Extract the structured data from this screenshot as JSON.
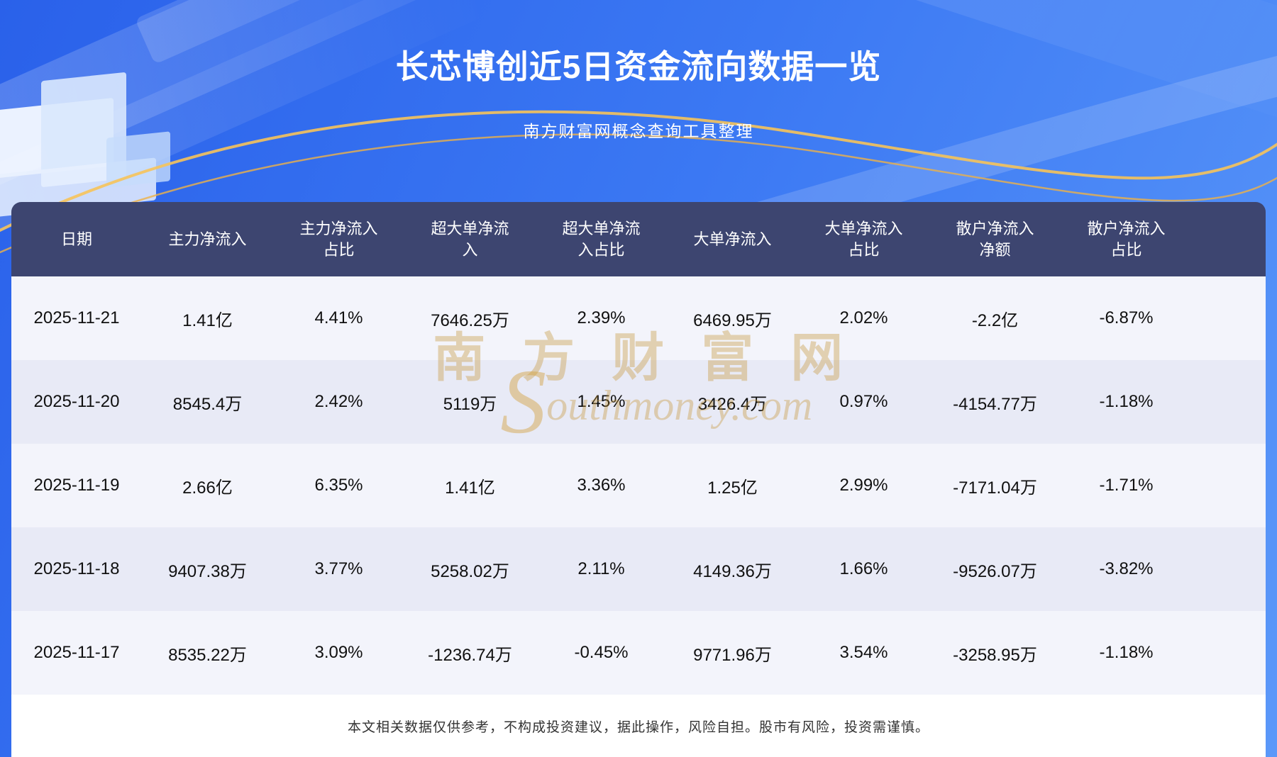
{
  "page": {
    "title": "长芯博创近5日资金流向数据一览",
    "subtitle": "南方财富网概念查询工具整理",
    "disclaimer": "本文相关数据仅供参考，不构成投资建议，据此操作，风险自担。股市有风险，投资需谨慎。",
    "watermark_cn": "南方财富网",
    "watermark_en": "outhmoney.com",
    "watermark_initial": "S"
  },
  "colors": {
    "background_top": "#2a61ea",
    "background_bottom": "#5b98f9",
    "header_row": "#3d4570",
    "row_odd": "#f3f4fb",
    "row_even": "#e8eaf6",
    "title_text": "#ffffff",
    "cell_text": "#101010",
    "watermark_gold": "#c6963a",
    "gold_ribbon": "#f6c35a",
    "footer_background": "#ffffff",
    "footer_text": "#333333"
  },
  "chart_data": {
    "type": "table",
    "title": "长芯博创近5日资金流向数据一览",
    "subtitle": "南方财富网概念查询工具整理",
    "columns": [
      "日期",
      "主力净流入",
      "主力净流入占比",
      "超大单净流入",
      "超大单净流入占比",
      "大单净流入",
      "大单净流入占比",
      "散户净流入净额",
      "散户净流入占比"
    ],
    "rows": [
      [
        "2025-11-21",
        "1.41亿",
        "4.41%",
        "7646.25万",
        "2.39%",
        "6469.95万",
        "2.02%",
        "-2.2亿",
        "-6.87%"
      ],
      [
        "2025-11-20",
        "8545.4万",
        "2.42%",
        "5119万",
        "1.45%",
        "3426.4万",
        "0.97%",
        "-4154.77万",
        "-1.18%"
      ],
      [
        "2025-11-19",
        "2.66亿",
        "6.35%",
        "1.41亿",
        "3.36%",
        "1.25亿",
        "2.99%",
        "-7171.04万",
        "-1.71%"
      ],
      [
        "2025-11-18",
        "9407.38万",
        "3.77%",
        "5258.02万",
        "2.11%",
        "4149.36万",
        "1.66%",
        "-9526.07万",
        "-3.82%"
      ],
      [
        "2025-11-17",
        "8535.22万",
        "3.09%",
        "-1236.74万",
        "-0.45%",
        "9771.96万",
        "3.54%",
        "-3258.95万",
        "-1.18%"
      ]
    ]
  }
}
